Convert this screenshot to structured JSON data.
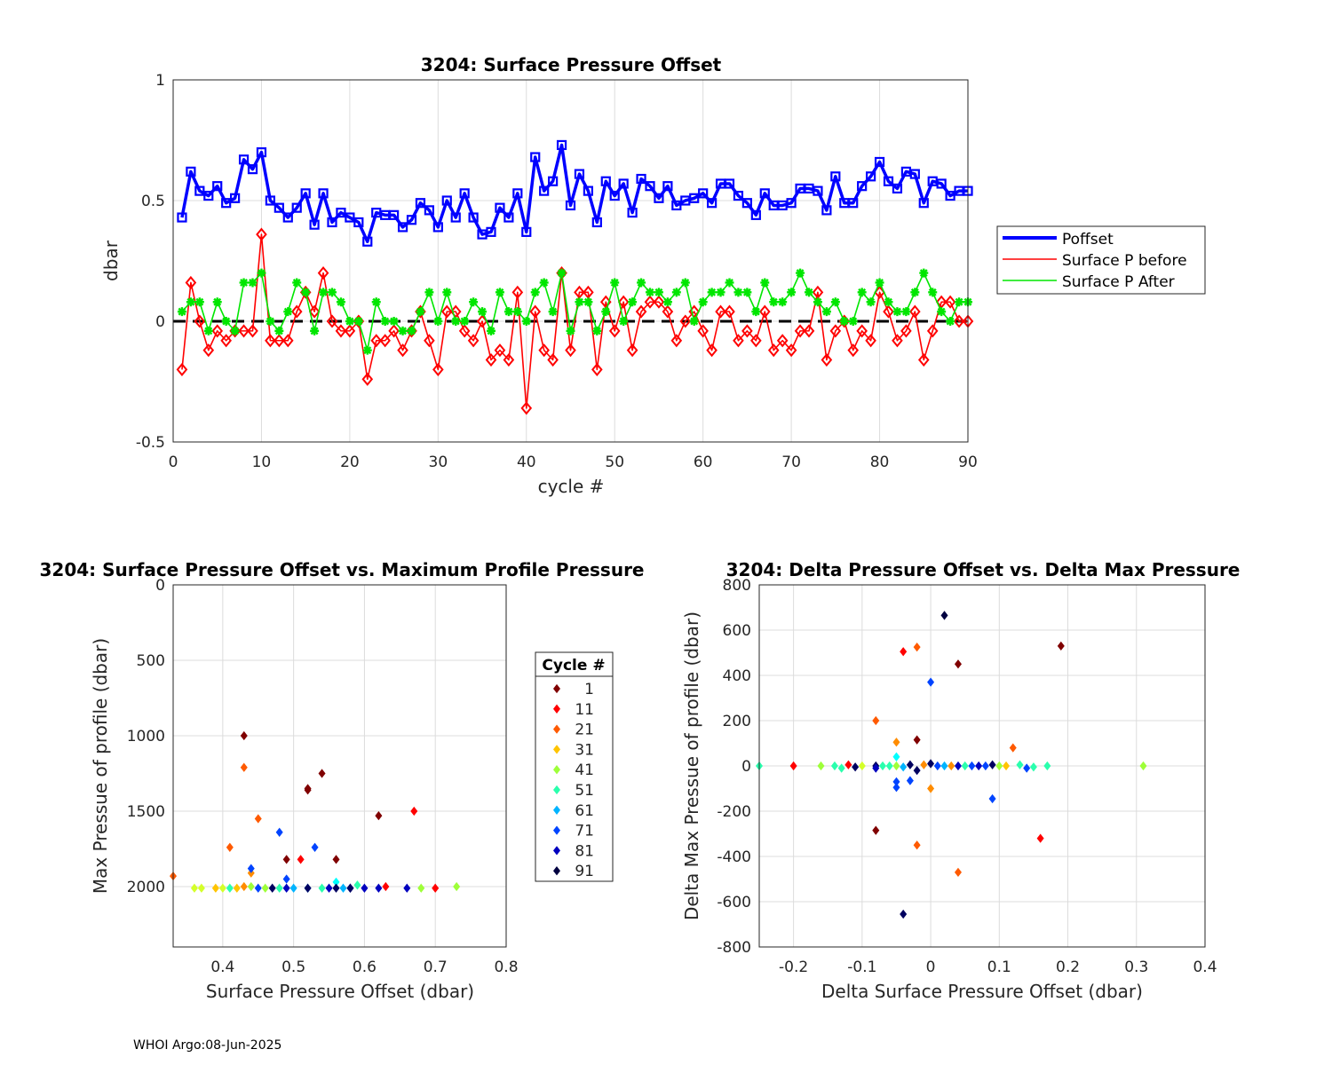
{
  "footer": "WHOI Argo:08-Jun-2025",
  "chart_data": [
    {
      "type": "line",
      "title": "3204: Surface Pressure Offset",
      "xlabel": "cycle #",
      "ylabel": "dbar",
      "xlim": [
        0,
        90
      ],
      "ylim": [
        -0.5,
        1
      ],
      "xticks": [
        0,
        10,
        20,
        30,
        40,
        50,
        60,
        70,
        80,
        90
      ],
      "yticks": [
        -0.5,
        0,
        0.5,
        1
      ],
      "yticklabels": [
        "-0.5",
        "0",
        "0.5",
        "1"
      ],
      "grid": true,
      "legend_position": "right",
      "reference_line_y": 0,
      "x": [
        1,
        2,
        3,
        4,
        5,
        6,
        7,
        8,
        9,
        10,
        11,
        12,
        13,
        14,
        15,
        16,
        17,
        18,
        19,
        20,
        21,
        22,
        23,
        24,
        25,
        26,
        27,
        28,
        29,
        30,
        31,
        32,
        33,
        34,
        35,
        36,
        37,
        38,
        39,
        40,
        41,
        42,
        43,
        44,
        45,
        46,
        47,
        48,
        49,
        50,
        51,
        52,
        53,
        54,
        55,
        56,
        57,
        58,
        59,
        60,
        61,
        62,
        63,
        64,
        65,
        66,
        67,
        68,
        69,
        70,
        71,
        72,
        73,
        74,
        75,
        76,
        77,
        78,
        79,
        80,
        81,
        82,
        83,
        84,
        85,
        86,
        87,
        88,
        89,
        90
      ],
      "series": [
        {
          "name": "Poffset",
          "color": "#0000ff",
          "marker": "square",
          "values": [
            0.43,
            0.62,
            0.54,
            0.52,
            0.56,
            0.49,
            0.51,
            0.67,
            0.63,
            0.7,
            0.5,
            0.47,
            0.43,
            0.47,
            0.53,
            0.4,
            0.53,
            0.41,
            0.45,
            0.43,
            0.41,
            0.33,
            0.45,
            0.44,
            0.44,
            0.39,
            0.42,
            0.49,
            0.46,
            0.39,
            0.5,
            0.43,
            0.53,
            0.43,
            0.36,
            0.37,
            0.47,
            0.43,
            0.53,
            0.37,
            0.68,
            0.54,
            0.58,
            0.73,
            0.48,
            0.61,
            0.54,
            0.41,
            0.58,
            0.52,
            0.57,
            0.45,
            0.59,
            0.56,
            0.51,
            0.56,
            0.48,
            0.5,
            0.51,
            0.53,
            0.49,
            0.57,
            0.57,
            0.52,
            0.49,
            0.44,
            0.53,
            0.48,
            0.48,
            0.49,
            0.55,
            0.55,
            0.54,
            0.46,
            0.6,
            0.49,
            0.49,
            0.56,
            0.6,
            0.66,
            0.58,
            0.55,
            0.62,
            0.61,
            0.49,
            0.58,
            0.57,
            0.52,
            0.54,
            0.54
          ]
        },
        {
          "name": "Surface P before",
          "color": "#ff0000",
          "marker": "diamond",
          "values": [
            -0.2,
            0.16,
            0.0,
            -0.12,
            -0.04,
            -0.08,
            -0.04,
            -0.04,
            -0.04,
            0.36,
            -0.08,
            -0.08,
            -0.08,
            0.04,
            0.12,
            0.04,
            0.2,
            0.0,
            -0.04,
            -0.04,
            0.0,
            -0.24,
            -0.08,
            -0.08,
            -0.04,
            -0.12,
            -0.04,
            0.04,
            -0.08,
            -0.2,
            0.04,
            0.04,
            -0.04,
            -0.08,
            0.0,
            -0.16,
            -0.12,
            -0.16,
            0.12,
            -0.36,
            0.04,
            -0.12,
            -0.16,
            0.2,
            -0.12,
            0.12,
            0.12,
            -0.2,
            0.08,
            -0.04,
            0.08,
            -0.12,
            0.04,
            0.08,
            0.08,
            0.04,
            -0.08,
            0.0,
            0.04,
            -0.04,
            -0.12,
            0.04,
            0.04,
            -0.08,
            -0.04,
            -0.08,
            0.04,
            -0.12,
            -0.08,
            -0.12,
            -0.04,
            -0.04,
            0.12,
            -0.16,
            -0.04,
            0.0,
            -0.12,
            -0.04,
            -0.08,
            0.12,
            0.04,
            -0.08,
            -0.04,
            0.04,
            -0.16,
            -0.04,
            0.08,
            0.08,
            0.0,
            0.0
          ]
        },
        {
          "name": "Surface P After",
          "color": "#00e600",
          "marker": "asterisk",
          "values": [
            0.04,
            0.08,
            0.08,
            -0.04,
            0.08,
            0.0,
            -0.04,
            0.16,
            0.16,
            0.2,
            0.0,
            -0.04,
            0.04,
            0.16,
            0.12,
            -0.04,
            0.12,
            0.12,
            0.08,
            0.0,
            0.0,
            -0.12,
            0.08,
            0.0,
            0.0,
            -0.04,
            -0.04,
            0.04,
            0.12,
            0.0,
            0.12,
            0.0,
            0.0,
            0.08,
            0.04,
            -0.04,
            0.12,
            0.04,
            0.04,
            0.0,
            0.12,
            0.16,
            0.04,
            0.2,
            -0.04,
            0.08,
            0.08,
            -0.04,
            0.04,
            0.16,
            0.0,
            0.08,
            0.16,
            0.12,
            0.12,
            0.08,
            0.12,
            0.16,
            0.0,
            0.08,
            0.12,
            0.12,
            0.16,
            0.12,
            0.12,
            0.04,
            0.16,
            0.08,
            0.08,
            0.12,
            0.2,
            0.12,
            0.08,
            0.04,
            0.08,
            0.0,
            0.0,
            0.12,
            0.08,
            0.16,
            0.08,
            0.04,
            0.04,
            0.12,
            0.2,
            0.12,
            0.04,
            0.0,
            0.08,
            0.08
          ]
        }
      ]
    },
    {
      "type": "scatter",
      "title": "3204: Surface Pressure Offset vs. Maximum Profile Pressure",
      "xlabel": "Surface Pressure Offset (dbar)",
      "ylabel": "Max Pressue of profile (dbar)",
      "xlim": [
        0.33,
        0.8
      ],
      "ylim": [
        0,
        2400
      ],
      "y_reversed": true,
      "xticks": [
        0.4,
        0.5,
        0.6,
        0.7,
        0.8
      ],
      "xticklabels": [
        "0.4",
        "0.5",
        "0.6",
        "0.7",
        "0.8"
      ],
      "yticks": [
        0,
        500,
        1000,
        1500,
        2000
      ],
      "grid": true,
      "legend_title": "Cycle #",
      "legend_position": "right",
      "legend_entries": [
        {
          "label": "1",
          "color": "#800000"
        },
        {
          "label": "11",
          "color": "#ff0000"
        },
        {
          "label": "21",
          "color": "#ff5a00"
        },
        {
          "label": "31",
          "color": "#ffc400"
        },
        {
          "label": "41",
          "color": "#9eff39"
        },
        {
          "label": "51",
          "color": "#2affad"
        },
        {
          "label": "61",
          "color": "#00b4ff"
        },
        {
          "label": "71",
          "color": "#0044ff"
        },
        {
          "label": "81",
          "color": "#0000bf"
        },
        {
          "label": "91",
          "color": "#000040"
        }
      ],
      "points": [
        {
          "x": 0.43,
          "y": 1000,
          "c": "#800000"
        },
        {
          "x": 0.54,
          "y": 1250,
          "c": "#800000"
        },
        {
          "x": 0.52,
          "y": 1350,
          "c": "#800000"
        },
        {
          "x": 0.52,
          "y": 1360,
          "c": "#800000"
        },
        {
          "x": 0.62,
          "y": 1530,
          "c": "#800000"
        },
        {
          "x": 0.49,
          "y": 1820,
          "c": "#800000"
        },
        {
          "x": 0.56,
          "y": 1820,
          "c": "#800000"
        },
        {
          "x": 0.67,
          "y": 1500,
          "c": "#ff0000"
        },
        {
          "x": 0.51,
          "y": 1820,
          "c": "#ff0000"
        },
        {
          "x": 0.7,
          "y": 2010,
          "c": "#ff0000"
        },
        {
          "x": 0.63,
          "y": 2000,
          "c": "#ff0000"
        },
        {
          "x": 0.43,
          "y": 1210,
          "c": "#ff5a00"
        },
        {
          "x": 0.45,
          "y": 1550,
          "c": "#ff5a00"
        },
        {
          "x": 0.41,
          "y": 1740,
          "c": "#ff5a00"
        },
        {
          "x": 0.33,
          "y": 1930,
          "c": "#ff5a00"
        },
        {
          "x": 0.44,
          "y": 1910,
          "c": "#ff8c00"
        },
        {
          "x": 0.43,
          "y": 2000,
          "c": "#ff8c00"
        },
        {
          "x": 0.39,
          "y": 2010,
          "c": "#ffc400"
        },
        {
          "x": 0.42,
          "y": 2010,
          "c": "#ffc400"
        },
        {
          "x": 0.36,
          "y": 2010,
          "c": "#d4ff2a"
        },
        {
          "x": 0.37,
          "y": 2010,
          "c": "#d4ff2a"
        },
        {
          "x": 0.4,
          "y": 2010,
          "c": "#d4ff2a"
        },
        {
          "x": 0.44,
          "y": 2000,
          "c": "#9eff39"
        },
        {
          "x": 0.46,
          "y": 2010,
          "c": "#9eff39"
        },
        {
          "x": 0.73,
          "y": 2000,
          "c": "#9eff39"
        },
        {
          "x": 0.68,
          "y": 2010,
          "c": "#9eff39"
        },
        {
          "x": 0.41,
          "y": 2010,
          "c": "#2affad"
        },
        {
          "x": 0.48,
          "y": 2010,
          "c": "#2affad"
        },
        {
          "x": 0.54,
          "y": 2010,
          "c": "#2affad"
        },
        {
          "x": 0.59,
          "y": 1990,
          "c": "#2affad"
        },
        {
          "x": 0.56,
          "y": 1970,
          "c": "#00ffff"
        },
        {
          "x": 0.5,
          "y": 2010,
          "c": "#00b4ff"
        },
        {
          "x": 0.52,
          "y": 2010,
          "c": "#00b4ff"
        },
        {
          "x": 0.57,
          "y": 2010,
          "c": "#00b4ff"
        },
        {
          "x": 0.48,
          "y": 1640,
          "c": "#0044ff"
        },
        {
          "x": 0.53,
          "y": 1740,
          "c": "#0044ff"
        },
        {
          "x": 0.44,
          "y": 1880,
          "c": "#0044ff"
        },
        {
          "x": 0.49,
          "y": 1950,
          "c": "#0044ff"
        },
        {
          "x": 0.45,
          "y": 2010,
          "c": "#0044ff"
        },
        {
          "x": 0.49,
          "y": 2010,
          "c": "#0000bf"
        },
        {
          "x": 0.55,
          "y": 2010,
          "c": "#0000bf"
        },
        {
          "x": 0.58,
          "y": 2010,
          "c": "#0000bf"
        },
        {
          "x": 0.6,
          "y": 2010,
          "c": "#0000bf"
        },
        {
          "x": 0.62,
          "y": 2010,
          "c": "#0000bf"
        },
        {
          "x": 0.66,
          "y": 2010,
          "c": "#0000bf"
        },
        {
          "x": 0.47,
          "y": 2010,
          "c": "#000060"
        },
        {
          "x": 0.52,
          "y": 2010,
          "c": "#000060"
        },
        {
          "x": 0.56,
          "y": 2010,
          "c": "#000060"
        },
        {
          "x": 0.58,
          "y": 2010,
          "c": "#000060"
        }
      ]
    },
    {
      "type": "scatter",
      "title": "3204: Delta Pressure Offset vs. Delta Max Pressure",
      "xlabel": "Delta Surface Pressure Offset (dbar)",
      "ylabel": "Delta Max Pressue of profile (dbar)",
      "xlim": [
        -0.25,
        0.4
      ],
      "ylim": [
        -800,
        800
      ],
      "xticks": [
        -0.2,
        -0.1,
        0,
        0.1,
        0.2,
        0.3,
        0.4
      ],
      "xticklabels": [
        "-0.2",
        "-0.1",
        "0",
        "0.1",
        "0.2",
        "0.3",
        "0.4"
      ],
      "yticks": [
        -800,
        -600,
        -400,
        -200,
        0,
        200,
        400,
        600,
        800
      ],
      "grid": true,
      "points": [
        {
          "x": 0.02,
          "y": 665,
          "c": "#000040"
        },
        {
          "x": 0.19,
          "y": 530,
          "c": "#800000"
        },
        {
          "x": -0.04,
          "y": 505,
          "c": "#ff0000"
        },
        {
          "x": -0.02,
          "y": 525,
          "c": "#ff5a00"
        },
        {
          "x": 0.04,
          "y": 450,
          "c": "#800000"
        },
        {
          "x": 0.0,
          "y": 370,
          "c": "#0044ff"
        },
        {
          "x": -0.08,
          "y": 200,
          "c": "#ff5a00"
        },
        {
          "x": -0.02,
          "y": 115,
          "c": "#800000"
        },
        {
          "x": -0.05,
          "y": 105,
          "c": "#ff8c00"
        },
        {
          "x": 0.12,
          "y": 80,
          "c": "#ff5a00"
        },
        {
          "x": -0.05,
          "y": 40,
          "c": "#00ffff"
        },
        {
          "x": -0.25,
          "y": 0,
          "c": "#2affad"
        },
        {
          "x": -0.2,
          "y": 0,
          "c": "#ff0000"
        },
        {
          "x": -0.16,
          "y": 0,
          "c": "#9eff39"
        },
        {
          "x": -0.14,
          "y": 0,
          "c": "#2affad"
        },
        {
          "x": -0.13,
          "y": -10,
          "c": "#2affad"
        },
        {
          "x": -0.12,
          "y": 5,
          "c": "#ff0000"
        },
        {
          "x": -0.11,
          "y": -5,
          "c": "#000060"
        },
        {
          "x": -0.1,
          "y": 0,
          "c": "#d4ff2a"
        },
        {
          "x": -0.08,
          "y": 0,
          "c": "#000060"
        },
        {
          "x": -0.08,
          "y": -10,
          "c": "#0000bf"
        },
        {
          "x": -0.07,
          "y": 0,
          "c": "#2affad"
        },
        {
          "x": -0.06,
          "y": 0,
          "c": "#2affad"
        },
        {
          "x": -0.05,
          "y": 0,
          "c": "#9eff39"
        },
        {
          "x": -0.04,
          "y": -5,
          "c": "#00b4ff"
        },
        {
          "x": -0.03,
          "y": 5,
          "c": "#000060"
        },
        {
          "x": -0.02,
          "y": -20,
          "c": "#000060"
        },
        {
          "x": -0.01,
          "y": 5,
          "c": "#ff8c00"
        },
        {
          "x": 0.0,
          "y": 10,
          "c": "#000060"
        },
        {
          "x": 0.01,
          "y": 0,
          "c": "#0044ff"
        },
        {
          "x": 0.02,
          "y": 0,
          "c": "#00b4ff"
        },
        {
          "x": 0.03,
          "y": 0,
          "c": "#ff8c00"
        },
        {
          "x": 0.04,
          "y": 0,
          "c": "#0000bf"
        },
        {
          "x": 0.05,
          "y": 0,
          "c": "#2affad"
        },
        {
          "x": 0.06,
          "y": 0,
          "c": "#0044ff"
        },
        {
          "x": 0.07,
          "y": 0,
          "c": "#0000bf"
        },
        {
          "x": 0.08,
          "y": 0,
          "c": "#0044ff"
        },
        {
          "x": 0.09,
          "y": 5,
          "c": "#000060"
        },
        {
          "x": 0.1,
          "y": 0,
          "c": "#9eff39"
        },
        {
          "x": 0.11,
          "y": 0,
          "c": "#ffc400"
        },
        {
          "x": 0.13,
          "y": 5,
          "c": "#2affad"
        },
        {
          "x": 0.14,
          "y": -10,
          "c": "#0044ff"
        },
        {
          "x": 0.15,
          "y": -5,
          "c": "#2affad"
        },
        {
          "x": 0.17,
          "y": 0,
          "c": "#2affad"
        },
        {
          "x": 0.31,
          "y": 0,
          "c": "#9eff39"
        },
        {
          "x": -0.05,
          "y": -70,
          "c": "#0044ff"
        },
        {
          "x": -0.05,
          "y": -95,
          "c": "#0044ff"
        },
        {
          "x": -0.03,
          "y": -65,
          "c": "#0044ff"
        },
        {
          "x": 0.0,
          "y": -100,
          "c": "#ff8c00"
        },
        {
          "x": 0.09,
          "y": -145,
          "c": "#0044ff"
        },
        {
          "x": -0.08,
          "y": -285,
          "c": "#800000"
        },
        {
          "x": -0.02,
          "y": -350,
          "c": "#ff5a00"
        },
        {
          "x": 0.16,
          "y": -320,
          "c": "#ff0000"
        },
        {
          "x": 0.04,
          "y": -470,
          "c": "#ff5a00"
        },
        {
          "x": -0.04,
          "y": -655,
          "c": "#000060"
        }
      ]
    }
  ]
}
